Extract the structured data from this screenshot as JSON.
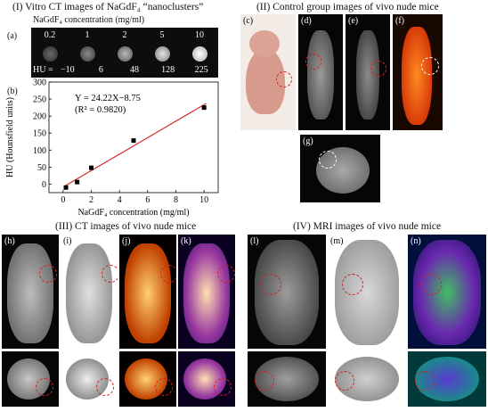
{
  "sections": {
    "s1_title": "(I) Vitro CT images of NaGdF₄ “nanoclusters”",
    "s2_title": "(II) Control group images of vivo nude mice",
    "s3_title": "(III) CT images of vivo nude mice",
    "s4_title": "(IV) MRI images of vivo nude mice"
  },
  "panel_a": {
    "label": "(a)",
    "header": "NaGdF₄ concentration (mg/ml)",
    "concentrations": [
      "0.2",
      "1",
      "2",
      "5",
      "10"
    ],
    "hu_prefix": "HU =",
    "hu_values": [
      "−10",
      "6",
      "48",
      "128",
      "225"
    ]
  },
  "panel_b": {
    "label": "(b)",
    "equation": "Y = 24.22X−8.75",
    "r2": "(R² = 0.9820)"
  },
  "chart_data": {
    "type": "scatter",
    "x": [
      0.2,
      1,
      2,
      5,
      10
    ],
    "y": [
      -10,
      6,
      48,
      128,
      225
    ],
    "fit": {
      "slope": 24.22,
      "intercept": -8.75
    },
    "xlabel": "NaGdF₄ concentration (mg/ml)",
    "ylabel": "HU (Hounsfield units)",
    "xlim": [
      -1,
      11
    ],
    "ylim": [
      -25,
      300
    ],
    "xticks": [
      0,
      2,
      4,
      6,
      8,
      10
    ],
    "yticks": [
      0,
      50,
      100,
      150,
      200,
      250,
      300
    ],
    "grid": false
  },
  "panels": {
    "c": "(c)",
    "d": "(d)",
    "e": "(e)",
    "f": "(f)",
    "g": "(g)",
    "h": "(h)",
    "i": "(i)",
    "j": "(j)",
    "k": "(k)",
    "l": "(l)",
    "m": "(m)",
    "n": "(n)"
  },
  "colors": {
    "ring": "#d42020",
    "fit_line": "#d22b2b",
    "marker": "#000000"
  }
}
